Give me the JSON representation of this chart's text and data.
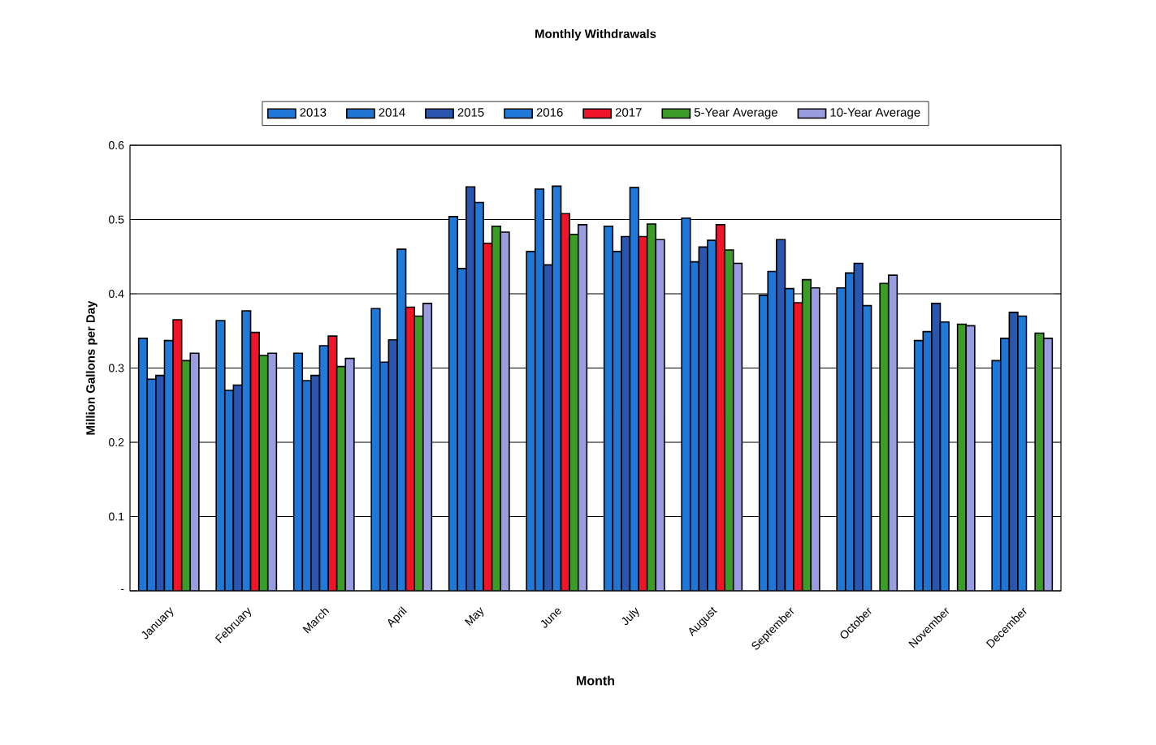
{
  "chart_data": {
    "type": "bar",
    "title": "Monthly Withdrawals",
    "xlabel": "Month",
    "ylabel": "Million Gallons per Day",
    "categories": [
      "January",
      "February",
      "March",
      "April",
      "May",
      "June",
      "July",
      "August",
      "September",
      "October",
      "November",
      "December"
    ],
    "series": [
      {
        "name": "2013",
        "color": "#1e78d8",
        "values": [
          0.34,
          0.364,
          0.32,
          0.38,
          0.504,
          0.457,
          0.491,
          0.502,
          0.398,
          0.408,
          0.337,
          0.31
        ]
      },
      {
        "name": "2014",
        "color": "#1f74d4",
        "values": [
          0.285,
          0.27,
          0.283,
          0.308,
          0.434,
          0.541,
          0.457,
          0.443,
          0.43,
          0.428,
          0.349,
          0.34
        ]
      },
      {
        "name": "2015",
        "color": "#2a56b0",
        "values": [
          0.29,
          0.277,
          0.29,
          0.338,
          0.544,
          0.439,
          0.477,
          0.463,
          0.473,
          0.441,
          0.387,
          0.375
        ]
      },
      {
        "name": "2016",
        "color": "#1f7ad9",
        "values": [
          0.337,
          0.377,
          0.33,
          0.46,
          0.523,
          0.545,
          0.543,
          0.472,
          0.407,
          0.384,
          0.362,
          0.37
        ]
      },
      {
        "name": "2017",
        "color": "#f01428",
        "values": [
          0.365,
          0.348,
          0.343,
          0.382,
          0.468,
          0.508,
          0.477,
          0.493,
          0.388,
          null,
          null,
          null
        ]
      },
      {
        "name": "5-Year Average",
        "color": "#3c9c28",
        "values": [
          0.31,
          0.317,
          0.302,
          0.37,
          0.491,
          0.48,
          0.494,
          0.459,
          0.419,
          0.414,
          0.359,
          0.347
        ]
      },
      {
        "name": "10-Year Average",
        "color": "#9a9ce0",
        "values": [
          0.32,
          0.32,
          0.313,
          0.387,
          0.483,
          0.493,
          0.473,
          0.441,
          0.408,
          0.425,
          0.357,
          0.34
        ]
      }
    ],
    "ylim": [
      0,
      0.6
    ],
    "yticks": [
      {
        "value": 0,
        "label": "-"
      },
      0.1,
      0.2,
      0.3,
      0.4,
      0.5,
      0.6
    ],
    "grid": "y",
    "legend": "top"
  }
}
